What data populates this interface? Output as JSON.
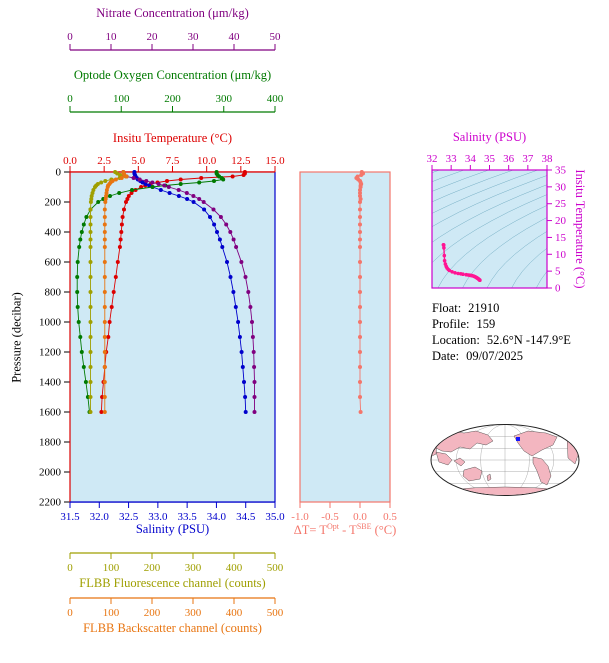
{
  "figure": {
    "colors": {
      "panel_bg": "#cfe9f5",
      "frame_red": "#dd0000",
      "frame_blue": "#0000cc",
      "graticule": "#777777"
    },
    "info": {
      "rows": [
        {
          "label": "Float:",
          "value": "21910"
        },
        {
          "label": "Profile:",
          "value": "159"
        },
        {
          "label": "Location:",
          "value": "52.6°N  -147.9°E"
        },
        {
          "label": "Date:",
          "value": "09/07/2025"
        }
      ]
    }
  },
  "chart_data": [
    {
      "id": "main-profile",
      "type": "line",
      "ylabel": "Pressure (decibar)",
      "ylim": [
        0,
        2200
      ],
      "yticks": [
        0,
        200,
        400,
        600,
        800,
        1000,
        1200,
        1400,
        1600,
        1800,
        2000,
        2200
      ],
      "pressure": [
        0,
        10,
        20,
        30,
        40,
        50,
        60,
        70,
        80,
        90,
        100,
        120,
        140,
        160,
        180,
        200,
        250,
        300,
        350,
        400,
        450,
        500,
        600,
        700,
        800,
        900,
        1000,
        1100,
        1200,
        1300,
        1400,
        1500,
        1600
      ],
      "x_axes": [
        {
          "id": "nitrate",
          "label": "Nitrate Concentration (μm/kg)",
          "color": "#800080",
          "range": [
            0,
            50
          ],
          "ticks": [
            "0",
            "10",
            "20",
            "30",
            "40",
            "50"
          ],
          "position": "top"
        },
        {
          "id": "oxygen",
          "label": "Optode Oxygen Concentration (μm/kg)",
          "color": "#007a00",
          "range": [
            0,
            400
          ],
          "ticks": [
            "0",
            "100",
            "200",
            "300",
            "400"
          ],
          "position": "top"
        },
        {
          "id": "temperature",
          "label": "Insitu Temperature (°C)",
          "color": "#dd0000",
          "range": [
            0,
            15
          ],
          "ticks": [
            "0.0",
            "2.5",
            "5.0",
            "7.5",
            "10.0",
            "12.5",
            "15.0"
          ],
          "position": "top"
        },
        {
          "id": "salinity",
          "label": "Salinity (PSU)",
          "color": "#0000cc",
          "range": [
            31.5,
            35.0
          ],
          "ticks": [
            "31.5",
            "32.0",
            "32.5",
            "33.0",
            "33.5",
            "34.0",
            "34.5",
            "35.0"
          ],
          "position": "bottom"
        },
        {
          "id": "fluorescence",
          "label": "FLBB Fluorescence channel (counts)",
          "color": "#9f9f00",
          "range": [
            0,
            500
          ],
          "ticks": [
            "0",
            "100",
            "200",
            "300",
            "400",
            "500"
          ],
          "position": "bottom"
        },
        {
          "id": "backscatter",
          "label": "FLBB Backscatter channel (counts)",
          "color": "#e87511",
          "range": [
            0,
            500
          ],
          "ticks": [
            "0",
            "100",
            "200",
            "300",
            "400",
            "500"
          ],
          "position": "bottom"
        }
      ],
      "series": [
        {
          "name": "Insitu Temperature",
          "axis": "temperature",
          "color": "#dd0000",
          "values": [
            12.8,
            12.8,
            12.7,
            11.9,
            9.6,
            8.1,
            7.1,
            6.4,
            5.9,
            5.5,
            5.2,
            4.8,
            4.5,
            4.3,
            4.2,
            4.1,
            3.95,
            3.85,
            3.8,
            3.75,
            3.7,
            3.65,
            3.5,
            3.35,
            3.2,
            3.05,
            2.9,
            2.8,
            2.65,
            2.55,
            2.45,
            2.35,
            2.3
          ]
        },
        {
          "name": "Salinity",
          "axis": "salinity",
          "color": "#0000cc",
          "values": [
            32.6,
            32.6,
            32.61,
            32.62,
            32.64,
            32.66,
            32.7,
            32.74,
            32.79,
            32.85,
            32.91,
            33.05,
            33.2,
            33.36,
            33.5,
            33.61,
            33.79,
            33.89,
            33.96,
            34.01,
            34.06,
            34.1,
            34.18,
            34.24,
            34.29,
            34.33,
            34.37,
            34.4,
            34.43,
            34.45,
            34.47,
            34.49,
            34.5
          ]
        },
        {
          "name": "Optode Oxygen Concentration",
          "axis": "oxygen",
          "color": "#007a00",
          "values": [
            286,
            286,
            288,
            291,
            296,
            299,
            281,
            252,
            216,
            186,
            161,
            121,
            96,
            78,
            65,
            55,
            40,
            32,
            27,
            23,
            20,
            18,
            15,
            14,
            14,
            15,
            17,
            20,
            23,
            27,
            31,
            35,
            38
          ]
        },
        {
          "name": "Nitrate Concentration",
          "axis": "nitrate",
          "color": "#800080",
          "values": [
            13,
            13.1,
            13.2,
            13.8,
            15.5,
            17,
            18.6,
            20.1,
            21.6,
            23,
            24.1,
            26.5,
            28.5,
            30.1,
            31.5,
            32.6,
            35,
            36.8,
            38.1,
            39.1,
            39.9,
            40.5,
            41.8,
            42.8,
            43.5,
            44,
            44.4,
            44.6,
            44.8,
            44.9,
            45,
            45,
            45
          ]
        },
        {
          "name": "FLBB Fluorescence channel",
          "axis": "fluorescence",
          "color": "#9f9f00",
          "values": [
            110,
            115,
            122,
            136,
            121,
            101,
            86,
            76,
            68,
            64,
            61,
            57,
            55,
            53,
            52,
            51,
            50,
            50,
            50,
            50,
            50,
            50,
            50,
            50,
            50,
            50,
            50,
            50,
            50,
            50,
            50,
            50,
            50
          ]
        },
        {
          "name": "FLBB Backscatter channel",
          "axis": "backscatter",
          "color": "#e87511",
          "values": [
            130,
            131,
            133,
            138,
            126,
            112,
            104,
            99,
            96,
            93,
            92,
            90,
            89,
            88,
            87,
            86,
            85,
            85,
            85,
            85,
            85,
            85,
            85,
            85,
            85,
            85,
            85,
            85,
            85,
            85,
            85,
            85,
            85
          ]
        }
      ]
    },
    {
      "id": "delta-t",
      "type": "line",
      "xlabel_parts": [
        "ΔT= T",
        "Opt",
        " - T",
        "SBE",
        " (°C)"
      ],
      "xlim": [
        -1.0,
        0.5
      ],
      "xticks": [
        "-1.0",
        "-0.5",
        "0.0",
        "0.5"
      ],
      "color": "#f4766b",
      "pressure": [
        0,
        10,
        20,
        30,
        40,
        50,
        60,
        70,
        80,
        90,
        100,
        120,
        140,
        160,
        180,
        200,
        250,
        300,
        350,
        400,
        450,
        500,
        600,
        700,
        800,
        900,
        1000,
        1100,
        1200,
        1300,
        1400,
        1500,
        1600
      ],
      "values": [
        0.03,
        0.05,
        0.02,
        -0.04,
        -0.06,
        -0.03,
        0.0,
        0.01,
        0.02,
        0.01,
        0.01,
        0.0,
        0.0,
        0.0,
        0.01,
        0.0,
        0.0,
        0.0,
        0.0,
        0.0,
        0.0,
        0.0,
        0.0,
        0.0,
        0.0,
        0.0,
        0.0,
        0.0,
        0.0,
        0.0,
        0.0,
        0.0,
        0.01
      ]
    },
    {
      "id": "ts-diagram",
      "type": "scatter",
      "xlabel": "Salinity (PSU)",
      "ylabel": "Insitu Temperature (°C)",
      "xlim": [
        32,
        38
      ],
      "ylim": [
        0,
        35
      ],
      "xticks": [
        32,
        33,
        34,
        35,
        36,
        37,
        38
      ],
      "yticks": [
        0,
        5,
        10,
        15,
        20,
        25,
        30,
        35
      ],
      "color": "#ff1493",
      "label_color": "#cc00cc",
      "isopycnals": {
        "sigma_min": 17,
        "sigma_max": 30,
        "step": 1,
        "color": "#74aec4"
      },
      "salinity": [
        32.6,
        32.6,
        32.61,
        32.62,
        32.64,
        32.66,
        32.7,
        32.74,
        32.79,
        32.85,
        32.91,
        33.05,
        33.2,
        33.36,
        33.5,
        33.61,
        33.79,
        33.89,
        33.96,
        34.01,
        34.06,
        34.1,
        34.18,
        34.24,
        34.29,
        34.33,
        34.37,
        34.4,
        34.43,
        34.45,
        34.47,
        34.49,
        34.5
      ],
      "temperature": [
        12.8,
        12.8,
        12.7,
        11.9,
        9.6,
        8.1,
        7.1,
        6.4,
        5.9,
        5.5,
        5.2,
        4.8,
        4.5,
        4.3,
        4.2,
        4.1,
        3.95,
        3.85,
        3.8,
        3.75,
        3.7,
        3.65,
        3.5,
        3.35,
        3.2,
        3.05,
        2.9,
        2.8,
        2.65,
        2.55,
        2.45,
        2.35,
        2.3
      ]
    },
    {
      "id": "world-map",
      "type": "map",
      "land_color": "#f3b6c0",
      "ocean_color": "#ffffff",
      "outline_color": "#222222",
      "marker": {
        "x": 88,
        "y": 15,
        "color": "#1515ff"
      }
    }
  ]
}
